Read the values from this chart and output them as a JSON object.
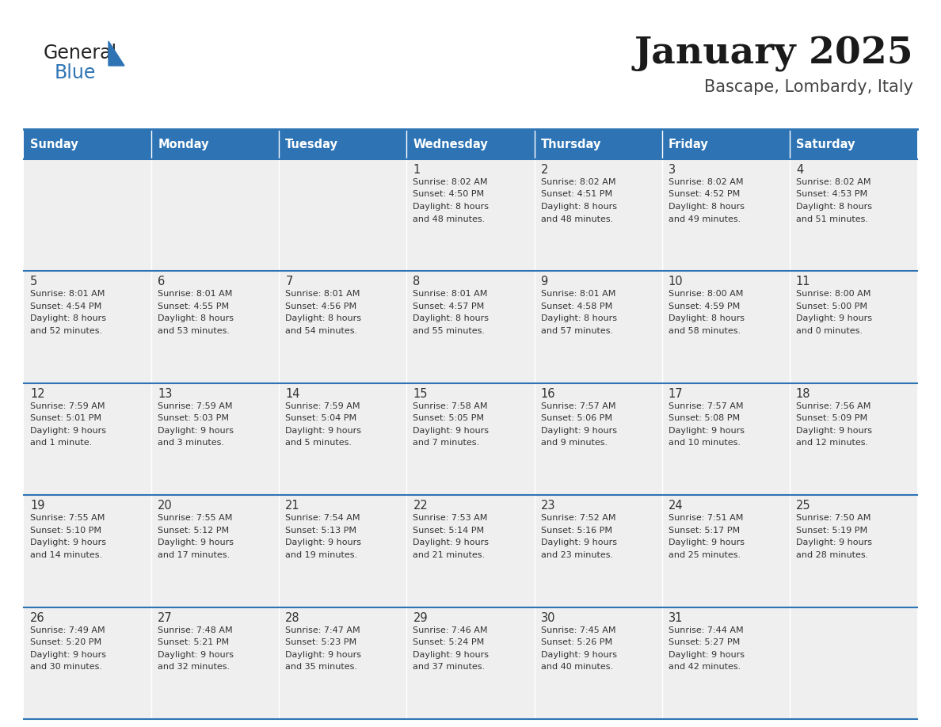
{
  "title": "January 2025",
  "subtitle": "Bascape, Lombardy, Italy",
  "header_bg": "#2E74B5",
  "header_text_color": "#FFFFFF",
  "cell_bg": "#EFEFEF",
  "text_color": "#333333",
  "line_color": "#2E74B5",
  "logo_general_color": "#222222",
  "logo_blue_color": "#2E74B5",
  "logo_triangle_color": "#2E74B5",
  "days_of_week": [
    "Sunday",
    "Monday",
    "Tuesday",
    "Wednesday",
    "Thursday",
    "Friday",
    "Saturday"
  ],
  "calendar_data": [
    [
      {
        "day": 0,
        "sunrise": "",
        "sunset": "",
        "daylight": ""
      },
      {
        "day": 0,
        "sunrise": "",
        "sunset": "",
        "daylight": ""
      },
      {
        "day": 0,
        "sunrise": "",
        "sunset": "",
        "daylight": ""
      },
      {
        "day": 1,
        "sunrise": "8:02 AM",
        "sunset": "4:50 PM",
        "daylight": "8 hours\nand 48 minutes."
      },
      {
        "day": 2,
        "sunrise": "8:02 AM",
        "sunset": "4:51 PM",
        "daylight": "8 hours\nand 48 minutes."
      },
      {
        "day": 3,
        "sunrise": "8:02 AM",
        "sunset": "4:52 PM",
        "daylight": "8 hours\nand 49 minutes."
      },
      {
        "day": 4,
        "sunrise": "8:02 AM",
        "sunset": "4:53 PM",
        "daylight": "8 hours\nand 51 minutes."
      }
    ],
    [
      {
        "day": 5,
        "sunrise": "8:01 AM",
        "sunset": "4:54 PM",
        "daylight": "8 hours\nand 52 minutes."
      },
      {
        "day": 6,
        "sunrise": "8:01 AM",
        "sunset": "4:55 PM",
        "daylight": "8 hours\nand 53 minutes."
      },
      {
        "day": 7,
        "sunrise": "8:01 AM",
        "sunset": "4:56 PM",
        "daylight": "8 hours\nand 54 minutes."
      },
      {
        "day": 8,
        "sunrise": "8:01 AM",
        "sunset": "4:57 PM",
        "daylight": "8 hours\nand 55 minutes."
      },
      {
        "day": 9,
        "sunrise": "8:01 AM",
        "sunset": "4:58 PM",
        "daylight": "8 hours\nand 57 minutes."
      },
      {
        "day": 10,
        "sunrise": "8:00 AM",
        "sunset": "4:59 PM",
        "daylight": "8 hours\nand 58 minutes."
      },
      {
        "day": 11,
        "sunrise": "8:00 AM",
        "sunset": "5:00 PM",
        "daylight": "9 hours\nand 0 minutes."
      }
    ],
    [
      {
        "day": 12,
        "sunrise": "7:59 AM",
        "sunset": "5:01 PM",
        "daylight": "9 hours\nand 1 minute."
      },
      {
        "day": 13,
        "sunrise": "7:59 AM",
        "sunset": "5:03 PM",
        "daylight": "9 hours\nand 3 minutes."
      },
      {
        "day": 14,
        "sunrise": "7:59 AM",
        "sunset": "5:04 PM",
        "daylight": "9 hours\nand 5 minutes."
      },
      {
        "day": 15,
        "sunrise": "7:58 AM",
        "sunset": "5:05 PM",
        "daylight": "9 hours\nand 7 minutes."
      },
      {
        "day": 16,
        "sunrise": "7:57 AM",
        "sunset": "5:06 PM",
        "daylight": "9 hours\nand 9 minutes."
      },
      {
        "day": 17,
        "sunrise": "7:57 AM",
        "sunset": "5:08 PM",
        "daylight": "9 hours\nand 10 minutes."
      },
      {
        "day": 18,
        "sunrise": "7:56 AM",
        "sunset": "5:09 PM",
        "daylight": "9 hours\nand 12 minutes."
      }
    ],
    [
      {
        "day": 19,
        "sunrise": "7:55 AM",
        "sunset": "5:10 PM",
        "daylight": "9 hours\nand 14 minutes."
      },
      {
        "day": 20,
        "sunrise": "7:55 AM",
        "sunset": "5:12 PM",
        "daylight": "9 hours\nand 17 minutes."
      },
      {
        "day": 21,
        "sunrise": "7:54 AM",
        "sunset": "5:13 PM",
        "daylight": "9 hours\nand 19 minutes."
      },
      {
        "day": 22,
        "sunrise": "7:53 AM",
        "sunset": "5:14 PM",
        "daylight": "9 hours\nand 21 minutes."
      },
      {
        "day": 23,
        "sunrise": "7:52 AM",
        "sunset": "5:16 PM",
        "daylight": "9 hours\nand 23 minutes."
      },
      {
        "day": 24,
        "sunrise": "7:51 AM",
        "sunset": "5:17 PM",
        "daylight": "9 hours\nand 25 minutes."
      },
      {
        "day": 25,
        "sunrise": "7:50 AM",
        "sunset": "5:19 PM",
        "daylight": "9 hours\nand 28 minutes."
      }
    ],
    [
      {
        "day": 26,
        "sunrise": "7:49 AM",
        "sunset": "5:20 PM",
        "daylight": "9 hours\nand 30 minutes."
      },
      {
        "day": 27,
        "sunrise": "7:48 AM",
        "sunset": "5:21 PM",
        "daylight": "9 hours\nand 32 minutes."
      },
      {
        "day": 28,
        "sunrise": "7:47 AM",
        "sunset": "5:23 PM",
        "daylight": "9 hours\nand 35 minutes."
      },
      {
        "day": 29,
        "sunrise": "7:46 AM",
        "sunset": "5:24 PM",
        "daylight": "9 hours\nand 37 minutes."
      },
      {
        "day": 30,
        "sunrise": "7:45 AM",
        "sunset": "5:26 PM",
        "daylight": "9 hours\nand 40 minutes."
      },
      {
        "day": 31,
        "sunrise": "7:44 AM",
        "sunset": "5:27 PM",
        "daylight": "9 hours\nand 42 minutes."
      },
      {
        "day": 0,
        "sunrise": "",
        "sunset": "",
        "daylight": ""
      }
    ]
  ]
}
